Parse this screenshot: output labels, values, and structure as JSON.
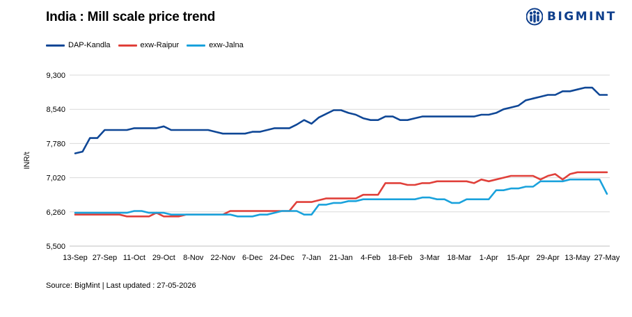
{
  "header": {
    "title": "India : Mill scale price trend",
    "logo_text": "BIGMINT",
    "logo_icon": "bigmint-people-icon"
  },
  "footer": {
    "source": "Source: BigMint | Last updated : 27-05-2026"
  },
  "chart_data": {
    "type": "line",
    "title": "India : Mill scale price trend",
    "ylabel": "INR/t",
    "xlabel": "",
    "ylim": [
      5500,
      9300
    ],
    "yticks": [
      5500,
      6260,
      7020,
      7780,
      8540,
      9300
    ],
    "ytick_labels": [
      "5,500",
      "6,260",
      "7,020",
      "7,780",
      "8,540",
      "9,300"
    ],
    "grid": "horizontal",
    "legend_position": "top-left",
    "x_tick_labels": [
      "13-Sep",
      "27-Sep",
      "11-Oct",
      "29-Oct",
      "8-Nov",
      "22-Nov",
      "6-Dec",
      "24-Dec",
      "7-Jan",
      "21-Jan",
      "4-Feb",
      "18-Feb",
      "3-Mar",
      "18-Mar",
      "1-Apr",
      "15-Apr",
      "29-Apr",
      "13-May",
      "27-May"
    ],
    "x_tick_index": [
      0,
      4,
      8,
      12,
      16,
      20,
      24,
      28,
      32,
      36,
      40,
      44,
      48,
      52,
      56,
      60,
      64,
      68,
      72
    ],
    "x_count": 73,
    "series": [
      {
        "name": "DAP-Kandla",
        "color": "#0f4796",
        "values": [
          7560,
          7600,
          7900,
          7900,
          8080,
          8080,
          8080,
          8080,
          8120,
          8120,
          8120,
          8120,
          8160,
          8080,
          8080,
          8080,
          8080,
          8080,
          8080,
          8040,
          8000,
          8000,
          8000,
          8000,
          8040,
          8040,
          8080,
          8120,
          8120,
          8120,
          8200,
          8300,
          8220,
          8360,
          8440,
          8520,
          8520,
          8460,
          8420,
          8340,
          8300,
          8300,
          8380,
          8380,
          8300,
          8300,
          8340,
          8380,
          8380,
          8380,
          8380,
          8380,
          8380,
          8380,
          8380,
          8420,
          8420,
          8460,
          8540,
          8580,
          8620,
          8740,
          8780,
          8820,
          8860,
          8860,
          8940,
          8940,
          8980,
          9020,
          9020,
          8860,
          8860
        ]
      },
      {
        "name": "exw-Raipur",
        "color": "#e0403a",
        "values": [
          6200,
          6200,
          6200,
          6200,
          6200,
          6200,
          6200,
          6160,
          6160,
          6160,
          6160,
          6240,
          6160,
          6160,
          6160,
          6200,
          6200,
          6200,
          6200,
          6200,
          6200,
          6280,
          6280,
          6280,
          6280,
          6280,
          6280,
          6280,
          6280,
          6280,
          6480,
          6480,
          6480,
          6520,
          6560,
          6560,
          6560,
          6560,
          6560,
          6640,
          6640,
          6640,
          6900,
          6900,
          6900,
          6860,
          6860,
          6900,
          6900,
          6940,
          6940,
          6940,
          6940,
          6940,
          6900,
          6980,
          6940,
          6980,
          7020,
          7060,
          7060,
          7060,
          7060,
          6980,
          7060,
          7100,
          6980,
          7100,
          7140,
          7140,
          7140,
          7140,
          7140
        ]
      },
      {
        "name": "exw-Jalna",
        "color": "#1aa2dc",
        "values": [
          6240,
          6240,
          6240,
          6240,
          6240,
          6240,
          6240,
          6240,
          6280,
          6280,
          6240,
          6240,
          6240,
          6200,
          6200,
          6200,
          6200,
          6200,
          6200,
          6200,
          6200,
          6200,
          6160,
          6160,
          6160,
          6200,
          6200,
          6240,
          6280,
          6280,
          6280,
          6200,
          6200,
          6420,
          6420,
          6460,
          6460,
          6500,
          6500,
          6540,
          6540,
          6540,
          6540,
          6540,
          6540,
          6540,
          6540,
          6580,
          6580,
          6540,
          6540,
          6460,
          6460,
          6540,
          6540,
          6540,
          6540,
          6740,
          6740,
          6780,
          6780,
          6820,
          6820,
          6940,
          6940,
          6940,
          6940,
          6980,
          6980,
          6980,
          6980,
          6980,
          6660
        ]
      }
    ]
  }
}
